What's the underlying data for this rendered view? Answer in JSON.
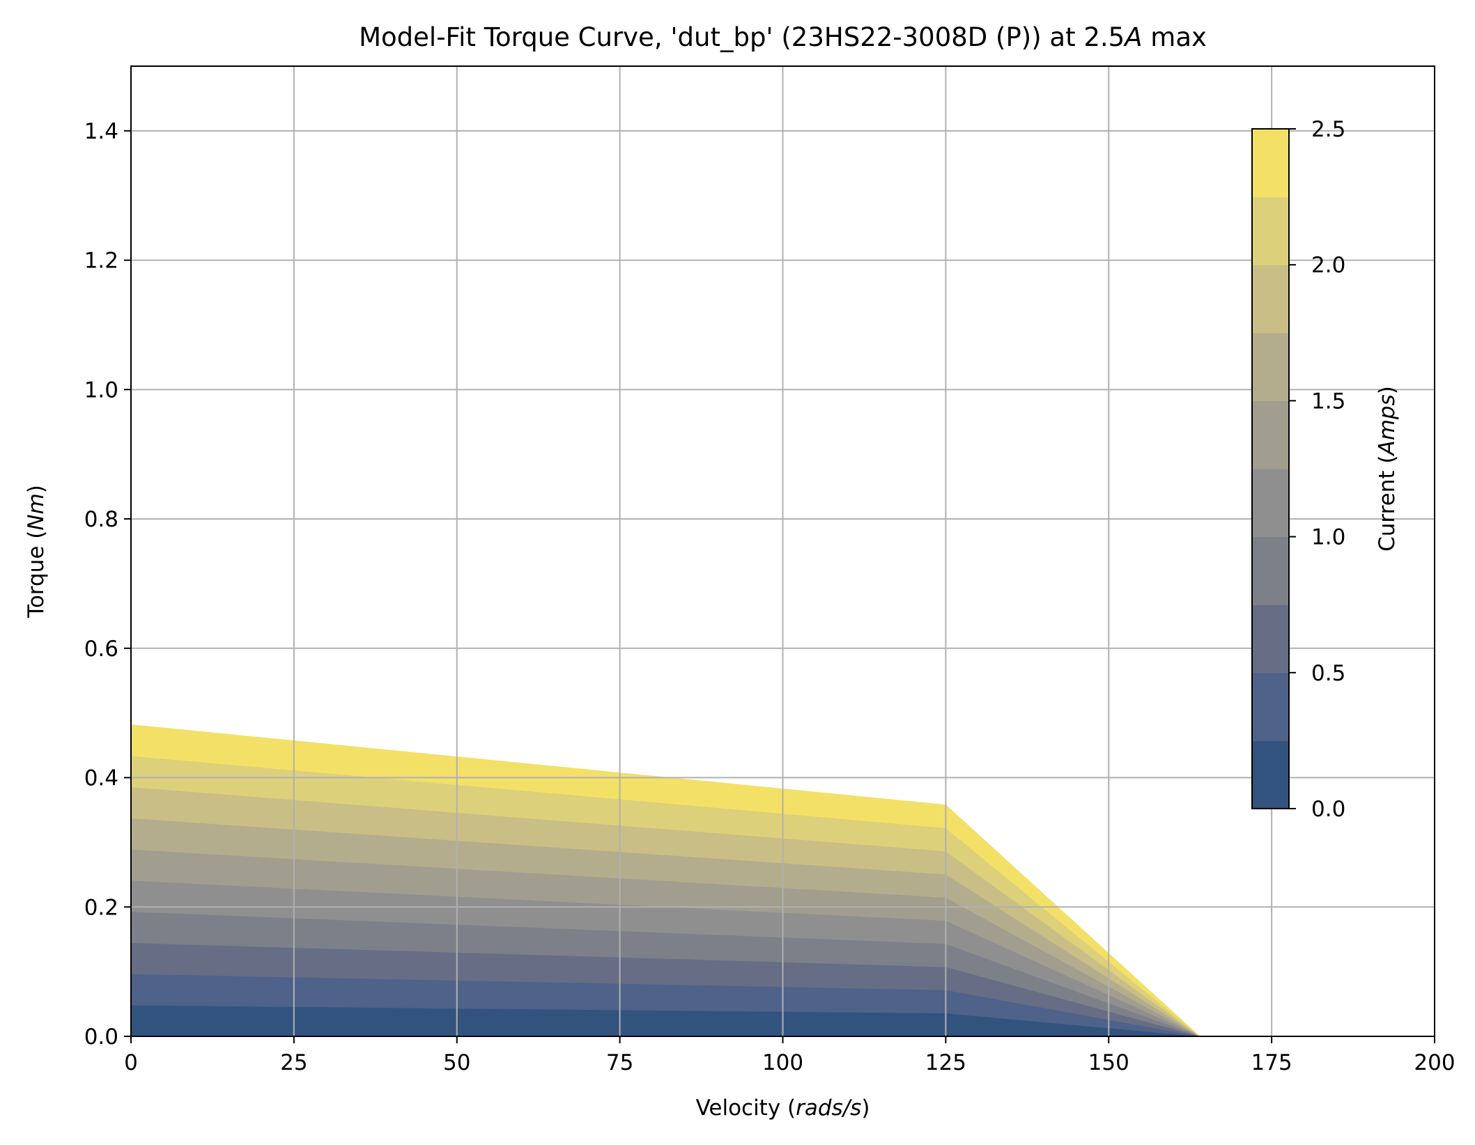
{
  "chart_data": {
    "type": "contourf",
    "title": "Model-Fit Torque Curve, 'dut_bp' (23HS22-3008D (P)) at 2.5",
    "title_italic_part": "A",
    "title_suffix": " max",
    "xlabel_prefix": "Velocity (",
    "xlabel_italic": "rads/s",
    "xlabel_suffix": ")",
    "ylabel_prefix": "Torque (",
    "ylabel_italic": "Nm",
    "ylabel_suffix": ")",
    "xlim": [
      0,
      200
    ],
    "ylim": [
      0,
      1.5
    ],
    "x_ticks": [
      0,
      25,
      50,
      75,
      100,
      125,
      150,
      175,
      200
    ],
    "x_tick_labels": [
      "0",
      "25",
      "50",
      "75",
      "100",
      "125",
      "150",
      "175",
      "200"
    ],
    "y_ticks": [
      0.0,
      0.2,
      0.4,
      0.6,
      0.8,
      1.0,
      1.2,
      1.4
    ],
    "y_tick_labels": [
      "0.0",
      "0.2",
      "0.4",
      "0.6",
      "0.8",
      "1.0",
      "1.2",
      "1.4"
    ],
    "grid": true,
    "region_boundary": [
      [
        0,
        0.482
      ],
      [
        125,
        0.358
      ],
      [
        164,
        0.0
      ]
    ],
    "max_current": 2.5,
    "contour_levels": [
      0.0,
      0.25,
      0.5,
      0.75,
      1.0,
      1.25,
      1.5,
      1.75,
      2.0,
      2.25,
      2.5
    ],
    "colormap": [
      "#33537f",
      "#4e628a",
      "#666d85",
      "#7d8088",
      "#8f8f8f",
      "#a19e8f",
      "#b4ad8d",
      "#c9be86",
      "#ddd07a",
      "#f3e167"
    ],
    "colorbar": {
      "label_prefix": "Current (",
      "label_italic": "Amps",
      "label_suffix": ")",
      "ticks": [
        0.0,
        0.5,
        1.0,
        1.5,
        2.0,
        2.5
      ],
      "tick_labels": [
        "0.0",
        "0.5",
        "1.0",
        "1.5",
        "2.0",
        "2.5"
      ],
      "range": [
        0,
        2.5
      ]
    }
  }
}
